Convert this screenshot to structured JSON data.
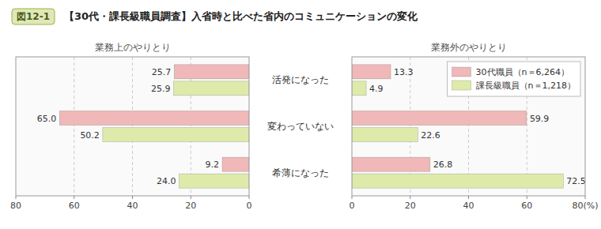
{
  "chart_data": [
    {
      "type": "bar",
      "orientation": "horizontal",
      "title": "【30代・課長級職員調査】入省時と比べた省内のコミュニケーションの変化",
      "annotations": [
        "図12-1"
      ],
      "subtitle": "業務上のやりとり",
      "categories": [
        "活発になった",
        "変わっていない",
        "希薄になった"
      ],
      "series": [
        {
          "color": "#f0b8b8",
          "values": [
            25.7,
            65.0,
            9.2
          ],
          "value_labels": [
            "25.7",
            "65.0",
            "9.2"
          ]
        },
        {
          "color": "#deeaaa",
          "values": [
            25.9,
            50.2,
            24.0
          ],
          "value_labels": [
            "25.9",
            "50.2",
            "24.0"
          ]
        }
      ],
      "xlim": [
        80,
        0
      ],
      "xticks": [
        0,
        20,
        40,
        60,
        80
      ],
      "grid": true,
      "data_labels": true
    },
    {
      "type": "bar",
      "orientation": "horizontal",
      "subtitle": "業務外のやりとり",
      "series": [
        {
          "name": "30代職員（n＝6,264）",
          "color": "#f0b8b8",
          "values": [
            13.3,
            59.9,
            26.8
          ]
        },
        {
          "name": "課長級職員（n＝1,218）",
          "color": "#deeaaa",
          "values": [
            4.9,
            22.6,
            72.5
          ]
        }
      ],
      "xlim": [
        0,
        80
      ],
      "xticks": [
        0,
        20,
        40,
        60,
        {
          "value": 80,
          "label": "80(%)"
        }
      ],
      "grid": true,
      "data_labels": true,
      "legend": "upper right"
    }
  ]
}
